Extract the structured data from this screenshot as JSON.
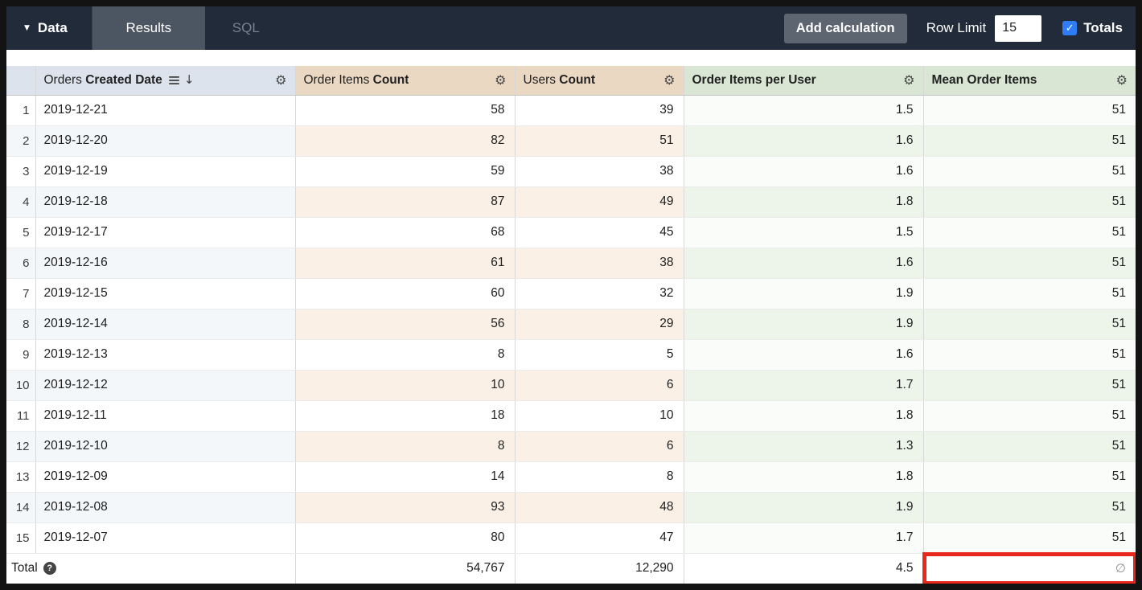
{
  "toolbar": {
    "data_label": "Data",
    "tabs": [
      {
        "label": "Results",
        "active": true
      },
      {
        "label": "SQL",
        "active": false
      }
    ],
    "add_calculation_label": "Add calculation",
    "row_limit_label": "Row Limit",
    "row_limit_value": "15",
    "totals_label": "Totals",
    "totals_checked": true
  },
  "icons": {
    "caret": "▼",
    "gear": "⚙",
    "sort_arrow": "↓",
    "check": "✓",
    "help": "?",
    "null_symbol": "∅"
  },
  "colors": {
    "toolbar_bg": "#212b39",
    "tab_active_bg": "#4c5662",
    "dimension_header_bg": "#dce3ed",
    "measure_header_bg": "#ead8c3",
    "calc_header_bg": "#d8e6d3",
    "dimension_tint": "#f4f7fa",
    "measure_tint": "#faf0e6",
    "calc_tint": "#edf5ea",
    "calc_tint_light": "#f9fcf8",
    "checkbox_blue": "#2e7df6",
    "highlight_red": "#e8281c"
  },
  "table": {
    "columns": [
      {
        "prefix": "Orders ",
        "name": "Created Date",
        "sorted_desc": true
      },
      {
        "prefix": "Order Items ",
        "name": "Count"
      },
      {
        "prefix": "Users ",
        "name": "Count"
      },
      {
        "prefix": "",
        "name": "Order Items per User"
      },
      {
        "prefix": "",
        "name": "Mean Order Items"
      }
    ],
    "rows": [
      {
        "n": "1",
        "date": "2019-12-21",
        "order_items": "58",
        "users": "39",
        "oipu": "1.5",
        "mean": "51"
      },
      {
        "n": "2",
        "date": "2019-12-20",
        "order_items": "82",
        "users": "51",
        "oipu": "1.6",
        "mean": "51"
      },
      {
        "n": "3",
        "date": "2019-12-19",
        "order_items": "59",
        "users": "38",
        "oipu": "1.6",
        "mean": "51"
      },
      {
        "n": "4",
        "date": "2019-12-18",
        "order_items": "87",
        "users": "49",
        "oipu": "1.8",
        "mean": "51"
      },
      {
        "n": "5",
        "date": "2019-12-17",
        "order_items": "68",
        "users": "45",
        "oipu": "1.5",
        "mean": "51"
      },
      {
        "n": "6",
        "date": "2019-12-16",
        "order_items": "61",
        "users": "38",
        "oipu": "1.6",
        "mean": "51"
      },
      {
        "n": "7",
        "date": "2019-12-15",
        "order_items": "60",
        "users": "32",
        "oipu": "1.9",
        "mean": "51"
      },
      {
        "n": "8",
        "date": "2019-12-14",
        "order_items": "56",
        "users": "29",
        "oipu": "1.9",
        "mean": "51"
      },
      {
        "n": "9",
        "date": "2019-12-13",
        "order_items": "8",
        "users": "5",
        "oipu": "1.6",
        "mean": "51"
      },
      {
        "n": "10",
        "date": "2019-12-12",
        "order_items": "10",
        "users": "6",
        "oipu": "1.7",
        "mean": "51"
      },
      {
        "n": "11",
        "date": "2019-12-11",
        "order_items": "18",
        "users": "10",
        "oipu": "1.8",
        "mean": "51"
      },
      {
        "n": "12",
        "date": "2019-12-10",
        "order_items": "8",
        "users": "6",
        "oipu": "1.3",
        "mean": "51"
      },
      {
        "n": "13",
        "date": "2019-12-09",
        "order_items": "14",
        "users": "8",
        "oipu": "1.8",
        "mean": "51"
      },
      {
        "n": "14",
        "date": "2019-12-08",
        "order_items": "93",
        "users": "48",
        "oipu": "1.9",
        "mean": "51"
      },
      {
        "n": "15",
        "date": "2019-12-07",
        "order_items": "80",
        "users": "47",
        "oipu": "1.7",
        "mean": "51"
      }
    ],
    "total": {
      "label": "Total",
      "order_items": "54,767",
      "users": "12,290",
      "oipu": "4.5",
      "mean": "∅"
    }
  }
}
